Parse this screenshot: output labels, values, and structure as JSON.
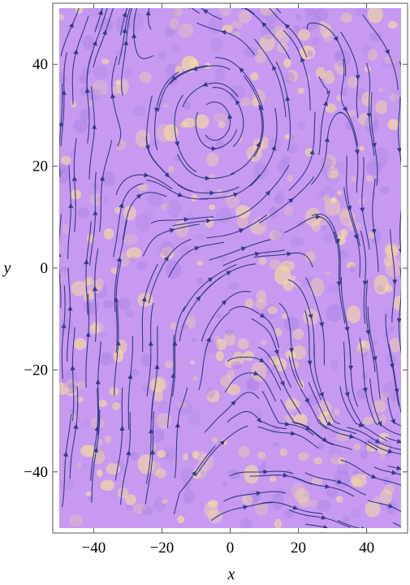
{
  "chart_data": {
    "type": "streamplot",
    "title": "",
    "xlabel": "x",
    "ylabel": "y",
    "xlim": [
      -52,
      52
    ],
    "ylim": [
      -52,
      52
    ],
    "x_ticks": [
      -40,
      -20,
      0,
      20,
      40
    ],
    "y_ticks": [
      -40,
      -20,
      0,
      20,
      40
    ],
    "x_tick_labels": [
      "−40",
      "−20",
      "0",
      "20",
      "40"
    ],
    "y_tick_labels": [
      "−40",
      "−20",
      "0",
      "20",
      "40"
    ],
    "grid": false,
    "legend": "none",
    "vortex_center": [
      -2,
      28
    ],
    "background": "noisy density field",
    "colors": {
      "background_base": "#c59af0",
      "background_light": "#f6dc9e",
      "background_dark": "#a883e6",
      "stream": "#3a3a8c",
      "frame": "#555555"
    }
  }
}
